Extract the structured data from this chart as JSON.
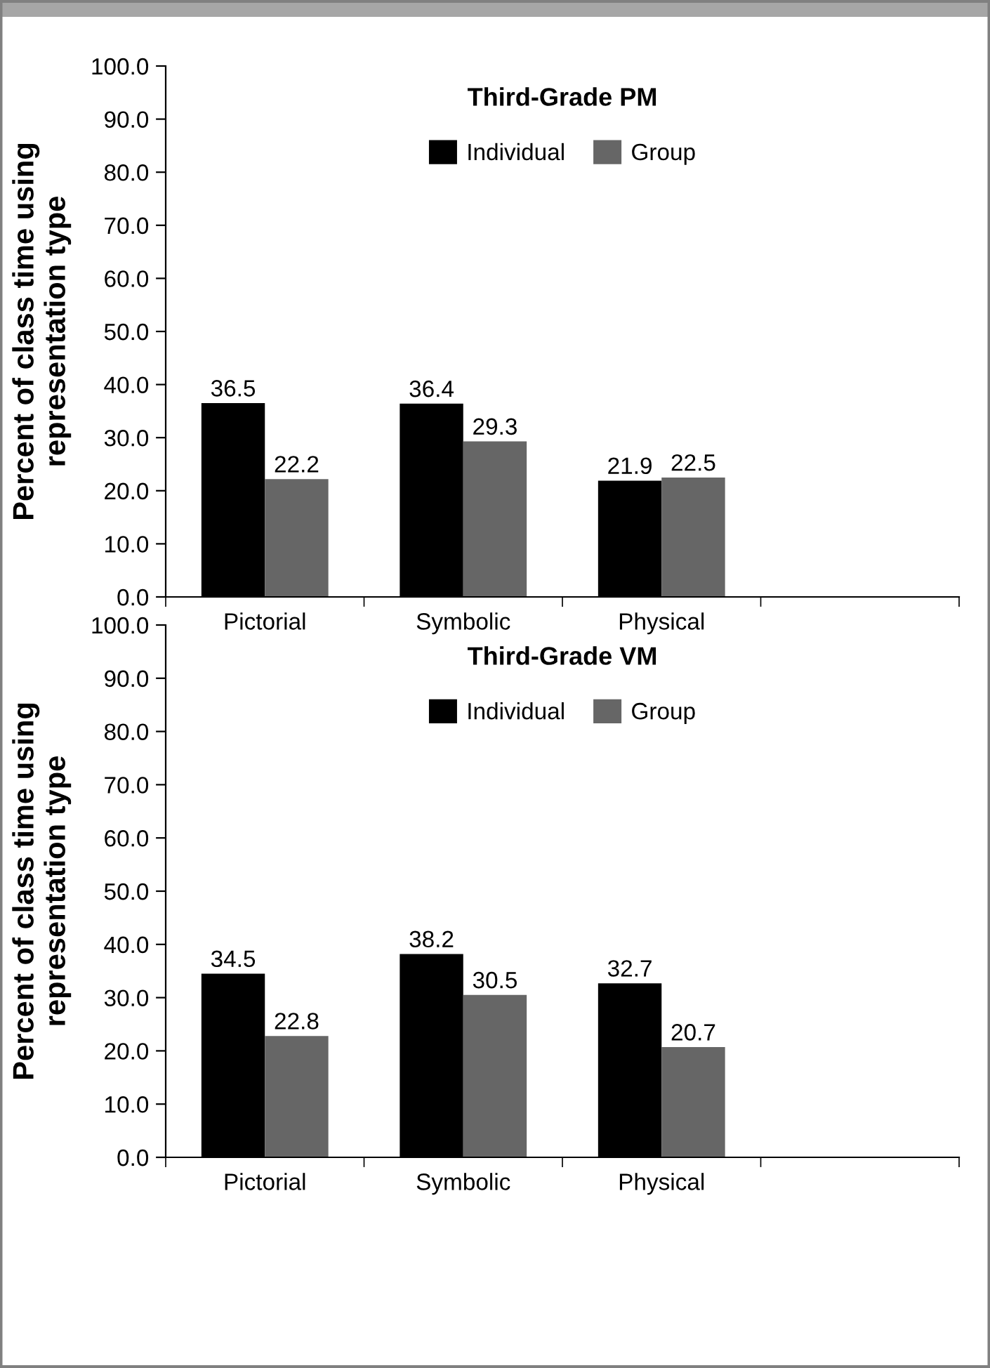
{
  "chart_data": [
    {
      "type": "bar",
      "title": "Third-Grade PM",
      "ylabel": "Percent of class time using\nrepresentation type",
      "categories": [
        "Pictorial",
        "Symbolic",
        "Physical"
      ],
      "series": [
        {
          "name": "Individual",
          "color": "#000000",
          "values": [
            36.5,
            36.4,
            21.9
          ]
        },
        {
          "name": "Group",
          "color": "#666666",
          "values": [
            22.2,
            29.3,
            22.5
          ]
        }
      ],
      "ylim": [
        0,
        100
      ],
      "yticks": [
        {
          "value": 0,
          "label": "0.0"
        },
        {
          "value": 10,
          "label": "10.0"
        },
        {
          "value": 20,
          "label": "20.0"
        },
        {
          "value": 30,
          "label": "30.0"
        },
        {
          "value": 40,
          "label": "40.0"
        },
        {
          "value": 50,
          "label": "50.0"
        },
        {
          "value": 60,
          "label": "60.0"
        },
        {
          "value": 70,
          "label": "70.0"
        },
        {
          "value": 80,
          "label": "80.0"
        },
        {
          "value": 90,
          "label": "90.0"
        },
        {
          "value": 100,
          "label": "100.0"
        }
      ],
      "data_labels": true,
      "legend": "top",
      "grid": false
    },
    {
      "type": "bar",
      "title": "Third-Grade VM",
      "ylabel": "Percent of class time using\nrepresentation type",
      "categories": [
        "Pictorial",
        "Symbolic",
        "Physical"
      ],
      "series": [
        {
          "name": "Individual",
          "color": "#000000",
          "values": [
            34.5,
            38.2,
            32.7
          ]
        },
        {
          "name": "Group",
          "color": "#666666",
          "values": [
            22.8,
            30.5,
            20.7
          ]
        }
      ],
      "ylim": [
        0,
        100
      ],
      "yticks": [
        {
          "value": 0,
          "label": "0.0"
        },
        {
          "value": 10,
          "label": "10.0"
        },
        {
          "value": 20,
          "label": "20.0"
        },
        {
          "value": 30,
          "label": "30.0"
        },
        {
          "value": 40,
          "label": "40.0"
        },
        {
          "value": 50,
          "label": "50.0"
        },
        {
          "value": 60,
          "label": "60.0"
        },
        {
          "value": 70,
          "label": "70.0"
        },
        {
          "value": 80,
          "label": "80.0"
        },
        {
          "value": 90,
          "label": "90.0"
        },
        {
          "value": 100,
          "label": "100.0"
        }
      ],
      "data_labels": true,
      "legend": "top",
      "grid": false
    }
  ]
}
